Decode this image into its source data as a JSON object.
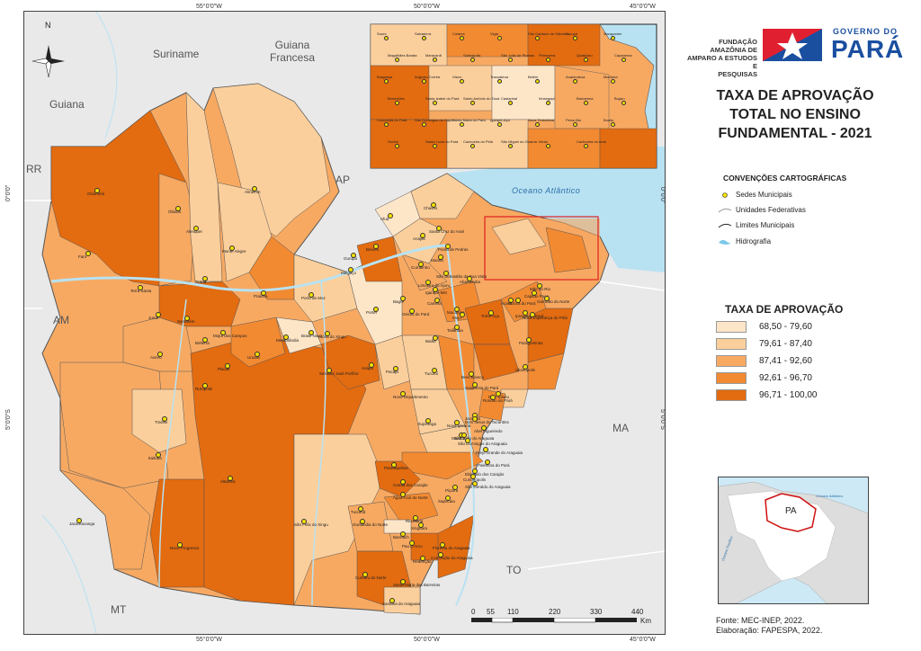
{
  "title_lines": [
    "TAXA DE APROVAÇÃO",
    "TOTAL NO ENSINO",
    "FUNDAMENTAL - 2021"
  ],
  "org": {
    "lines": [
      "FUNDAÇÃO AMAZÔNIA DE",
      "AMPARO A ESTUDOS E",
      "PESQUISAS"
    ],
    "gov_top": "GOVERNO DO",
    "gov_main": "PARÁ"
  },
  "conventions": {
    "title": "CONVENÇÕES CARTOGRÁFICAS",
    "items": [
      "Sedes Municipais",
      "Unidades Federativas",
      "Limites Municipais",
      "Hidrografia"
    ]
  },
  "legend": {
    "title": "TAXA DE APROVAÇÃO",
    "classes": [
      {
        "label": "68,50 - 79,60",
        "color": "#fde5c8"
      },
      {
        "label": "79,61 - 87,40",
        "color": "#fbcf9c"
      },
      {
        "label": "87,41 - 92,60",
        "color": "#f7a962"
      },
      {
        "label": "92,61 - 96,70",
        "color": "#f28a32"
      },
      {
        "label": "96,71 - 100,00",
        "color": "#e36b10"
      }
    ]
  },
  "graticule": {
    "top": [
      "55°0'0\"W",
      "50°0'0\"W",
      "45°0'0\"W"
    ],
    "bottom": [
      "55°0'0\"W",
      "50°0'0\"W",
      "45°0'0\"W"
    ],
    "left": [
      "0°0'0\"",
      "5°0'0\"S"
    ],
    "right": [
      "0°0'0\"",
      "5°0'0\"S"
    ]
  },
  "neighbors": [
    "Suriname",
    "Guiana Francesa",
    "Guiana",
    "RR",
    "AP",
    "AM",
    "MA",
    "TO",
    "MT"
  ],
  "ocean": "Oceano Atlântico",
  "north": "N",
  "scale": {
    "ticks": [
      "0",
      "55",
      "110",
      "220",
      "330",
      "440"
    ],
    "unit": "Km"
  },
  "locator": {
    "state": "PA",
    "ocean": "Oceano Atlântico",
    "ocean2": "Oceano Pacífico"
  },
  "source": [
    "Fonte: MEC-INEP, 2022.",
    "Elaboração: FAPESPA, 2022."
  ],
  "municipalities": [
    "Oriximiná",
    "Óbidos",
    "Faro",
    "Terra Santa",
    "Juruti",
    "Alenquer",
    "Almeirim",
    "Monte Alegre",
    "Curuá",
    "Prainha",
    "Porto de Moz",
    "Santarém",
    "Mojuí dos Campos",
    "Belterra",
    "Aveiro",
    "Placas",
    "Uruará",
    "Rurópolis",
    "Medicilândia",
    "Brasil Novo",
    "Vitória do Xingu",
    "Senador José Porfírio",
    "Altamira",
    "Trairão",
    "Itaituba",
    "Jacareacanga",
    "Novo Progresso",
    "Portel",
    "Gurupá",
    "Breves",
    "Melgaço",
    "Bagre",
    "Oeiras do Pará",
    "Anapu",
    "Pacajá",
    "Tucuruí",
    "Novo Repartimento",
    "Itupiranga",
    "Marabá",
    "Parauapebas",
    "Canaã dos Carajás",
    "Água Azul do Norte",
    "Tucumã",
    "Ourilândia do Norte",
    "São Félix do Xingu",
    "Bannach",
    "Rio Maria",
    "Xinguara",
    "Pau D'Arco",
    "Redenção",
    "Floresta do Araguaia",
    "Conceição do Araguaia",
    "Cumaru do Norte",
    "Santa Maria das Barreiras",
    "Santana do Araguaia",
    "Afuá",
    "Chaves",
    "Anajás",
    "Santa Cruz do Arari",
    "Ponta de Pedras",
    "Muaná",
    "Curralinho",
    "São Sebastião da Boa Vista",
    "Limoeiro do Ajuru",
    "Igarapé-Miri",
    "Cametá",
    "Mocajuba",
    "Baião",
    "Moju",
    "Tailândia",
    "Tomé-Açu",
    "Acará",
    "Abaetetuba",
    "Mãe do Rio",
    "Capitão Poço",
    "Aurora do Pará",
    "Ipixuna do Pará",
    "Paragominas",
    "Nova Esperança do Piriá",
    "Ulianópolis",
    "Goianésia do Pará",
    "Breu Branco",
    "Dom Eliseu",
    "Rondon do Pará",
    "Jacundá",
    "Nova Ipixuna",
    "Bom Jesus do Tocantins",
    "Abel Figueiredo",
    "São João do Araguaia",
    "São Domingos do Araguaia",
    "Brejo Grande do Araguaia",
    "Palestina do Pará",
    "Eldorado dos Carajás",
    "Curionópolis",
    "São Geraldo do Araguaia",
    "Piçarra",
    "Sapucaia",
    "Garrafão do Norte"
  ],
  "inset_names": [
    "Soure",
    "Salvaterra",
    "Colares",
    "Vigia",
    "São Caetano de Odivelas",
    "Curuçá",
    "Marapanim",
    "Magalhães Barata",
    "Maracanã",
    "Salinópolis",
    "São João de Pirabas",
    "Primavera",
    "Quatipuru",
    "Capanema",
    "Bragança",
    "Augusto Corrêa",
    "Viseu",
    "Tracuateua",
    "Belém",
    "Ananindeua",
    "Marituba",
    "Benevides",
    "Santa Izabel do Pará",
    "Santo Antônio do Tauá",
    "Castanhal",
    "Inhangapi",
    "Barcarena",
    "Bujaru",
    "Concórdia do Pará",
    "São Domingos do Capim",
    "Santa Maria do Pará",
    "Igarapé-Açu",
    "Nova Timboteua",
    "Peixe-Boi",
    "Bonito",
    "Ourém",
    "Santa Luzia do Pará",
    "Cachoeira do Piriá",
    "São Miguel do Guamá",
    "Irituia",
    "Cachoeira do Arari"
  ]
}
